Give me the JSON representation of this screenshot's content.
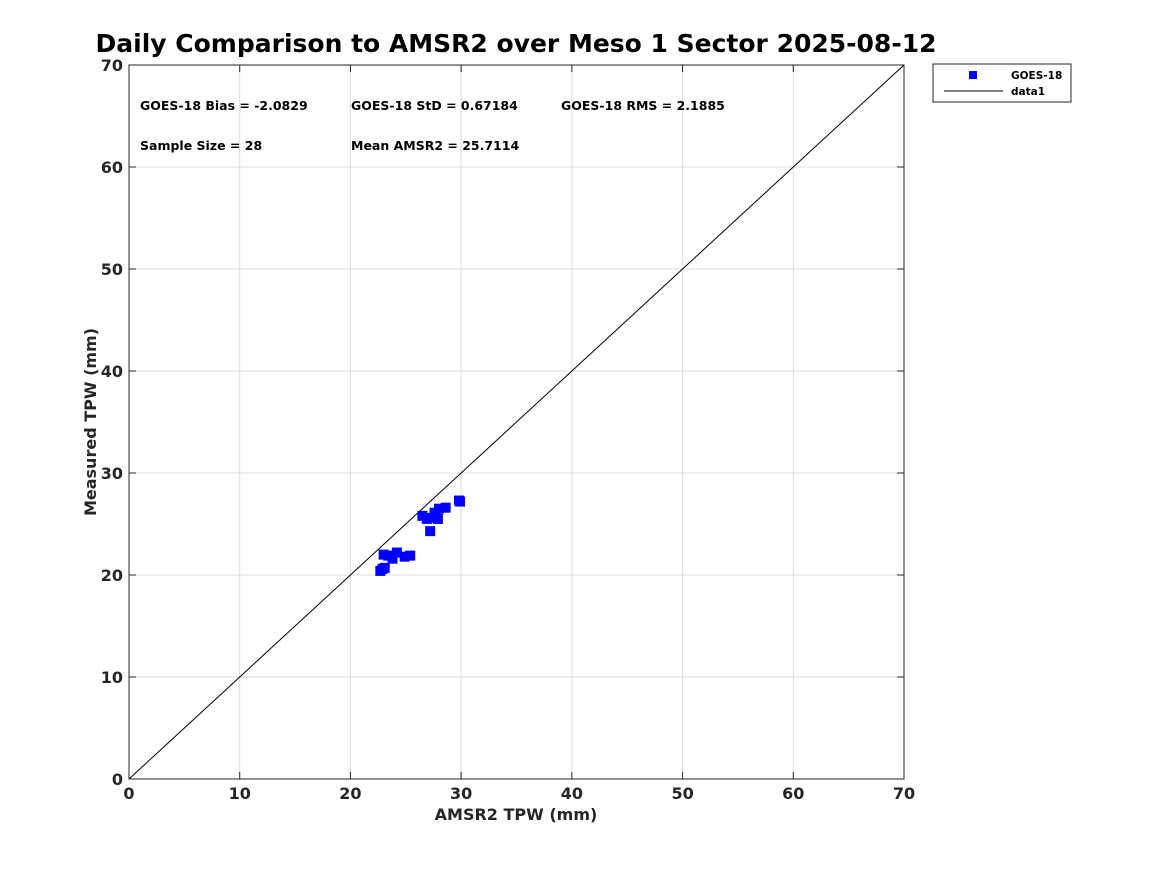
{
  "chart_data": {
    "type": "scatter",
    "title": "Daily Comparison to AMSR2 over Meso 1 Sector 2025-08-12",
    "xlabel": "AMSR2 TPW (mm)",
    "ylabel": "Measured TPW (mm)",
    "xlim": [
      0,
      70
    ],
    "ylim": [
      0,
      70
    ],
    "xticks": [
      0,
      10,
      20,
      30,
      40,
      50,
      60,
      70
    ],
    "yticks": [
      0,
      10,
      20,
      30,
      40,
      50,
      60,
      70
    ],
    "grid": true,
    "legend_position": "outside-top-right",
    "colors": {
      "series": "#0000ff",
      "reference_line": "#000000",
      "grid": "#dcdcdc"
    },
    "annotations": [
      "GOES-18 Bias = -2.0829",
      "GOES-18 StD = 0.67184",
      "GOES-18 RMS = 2.1885",
      "Sample Size = 28",
      "Mean AMSR2 = 25.7114"
    ],
    "series": [
      {
        "name": "GOES-18",
        "marker": "square",
        "points": [
          [
            22.7,
            20.4
          ],
          [
            22.9,
            20.6
          ],
          [
            23.1,
            20.7
          ],
          [
            23.0,
            22.0
          ],
          [
            23.4,
            21.9
          ],
          [
            23.8,
            21.6
          ],
          [
            24.2,
            22.2
          ],
          [
            24.9,
            21.8
          ],
          [
            25.4,
            21.9
          ],
          [
            26.5,
            25.8
          ],
          [
            26.9,
            25.5
          ],
          [
            27.2,
            24.3
          ],
          [
            27.4,
            25.6
          ],
          [
            27.6,
            26.1
          ],
          [
            27.9,
            25.5
          ],
          [
            28.0,
            26.5
          ],
          [
            28.6,
            26.6
          ],
          [
            29.8,
            27.3
          ],
          [
            29.9,
            27.2
          ]
        ]
      },
      {
        "name": "data1",
        "type": "line",
        "points": [
          [
            0,
            0
          ],
          [
            70,
            70
          ]
        ]
      }
    ]
  }
}
